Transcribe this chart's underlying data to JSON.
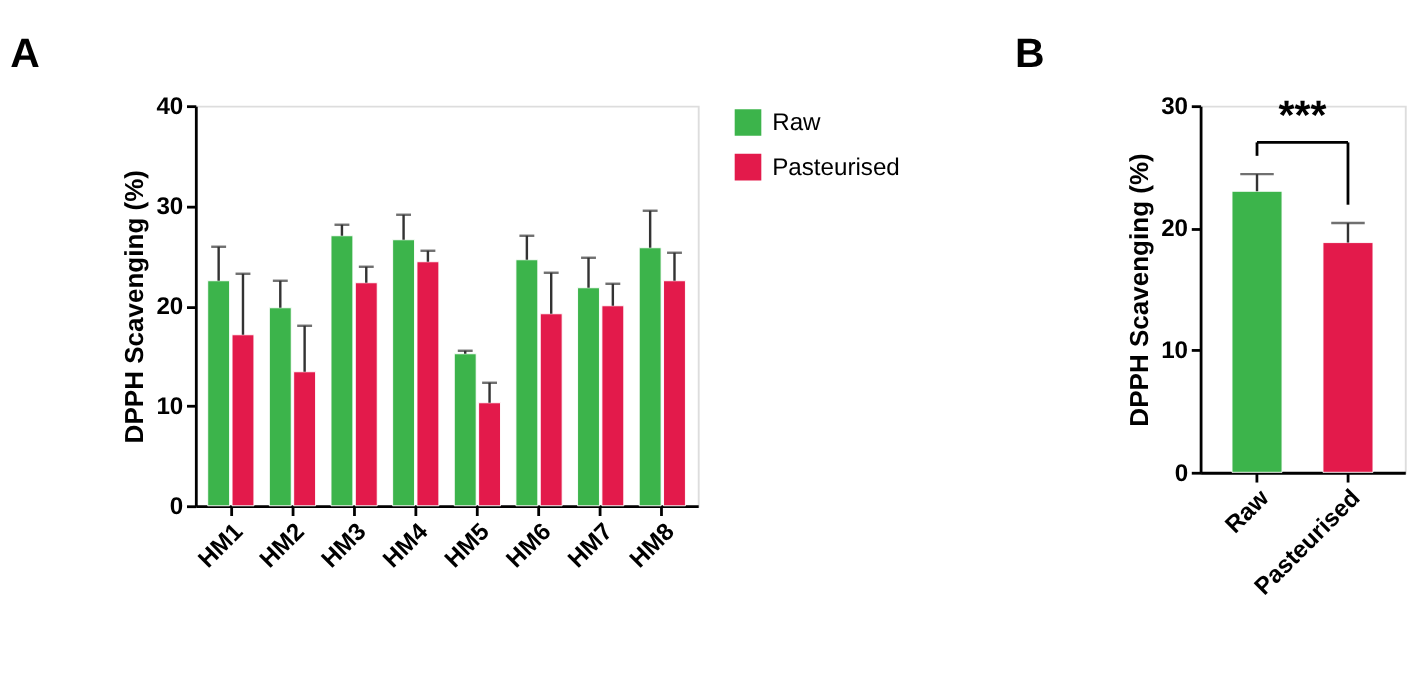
{
  "chart_data": [
    {
      "type": "bar",
      "title": "A",
      "ylabel": "DPPH Scavenging (%)",
      "categories": [
        "HM1",
        "HM2",
        "HM3",
        "HM4",
        "HM5",
        "HM6",
        "HM7",
        "HM8"
      ],
      "series": [
        {
          "name": "Raw",
          "color": "#3cb44b",
          "values": [
            22.5,
            19.8,
            27.0,
            26.6,
            15.2,
            24.6,
            21.8,
            25.8
          ],
          "errors": [
            [
              22.5,
              25.9
            ],
            [
              19.8,
              22.5
            ],
            [
              27.0,
              28.1
            ],
            [
              26.6,
              29.1
            ],
            [
              15.2,
              15.5
            ],
            [
              24.6,
              27.0
            ],
            [
              21.8,
              24.8
            ],
            [
              25.8,
              29.5
            ]
          ]
        },
        {
          "name": "Pasteurised",
          "color": "#e31a4b",
          "values": [
            17.1,
            13.4,
            22.3,
            24.4,
            10.3,
            19.2,
            20.0,
            22.5
          ],
          "errors": [
            [
              17.1,
              23.2
            ],
            [
              13.4,
              18.0
            ],
            [
              22.3,
              23.9
            ],
            [
              24.4,
              25.5
            ],
            [
              10.3,
              12.3
            ],
            [
              19.2,
              23.3
            ],
            [
              20.0,
              22.2
            ],
            [
              22.5,
              25.3
            ]
          ]
        }
      ],
      "ylim": [
        0,
        40
      ],
      "yticks": [
        0,
        10,
        20,
        30,
        40
      ],
      "grid": false,
      "legend": "right"
    },
    {
      "type": "bar",
      "title": "B",
      "ylabel": "DPPH Scavenging (%)",
      "categories": [
        "Raw",
        "Pasteurised"
      ],
      "values": [
        23.0,
        18.8
      ],
      "colors": [
        "#3cb44b",
        "#e31a4b"
      ],
      "errors": [
        [
          23.0,
          24.4
        ],
        [
          18.8,
          20.4
        ]
      ],
      "ylim": [
        0,
        30
      ],
      "yticks": [
        0,
        10,
        20,
        30
      ],
      "grid": false,
      "annotations": [
        "***"
      ]
    }
  ]
}
